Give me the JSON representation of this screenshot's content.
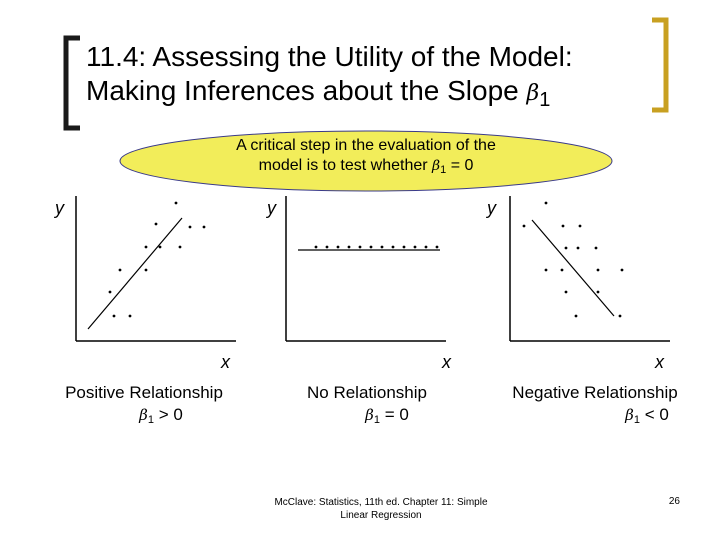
{
  "title": {
    "line1": "11.4: Assessing the Utility of the Model:",
    "line2_text": "Making Inferences about the Slope ",
    "beta_symbol": "β",
    "beta_sub": "1"
  },
  "callout": {
    "line1": "A critical step in the evaluation of the",
    "line2_text": "model is to test whether ",
    "beta_symbol": "β",
    "beta_sub": "1",
    "line2_tail": " = 0",
    "fill_color": "#f2ed5a",
    "border_color": "#3a3a8a"
  },
  "colors": {
    "bracket_left": "#1a1a1a",
    "bracket_right": "#c8a021"
  },
  "panels": [
    {
      "y_label": "y",
      "x_label": "x",
      "caption_line1": "Positive Relationship",
      "beta_symbol": "β",
      "beta_sub": "1",
      "caption_tail": " > 0"
    },
    {
      "y_label": "y",
      "x_label": "x",
      "caption_line1": "No Relationship",
      "beta_symbol": "β",
      "beta_sub": "1",
      "caption_tail": " = 0"
    },
    {
      "y_label": "y",
      "x_label": "x",
      "caption_line1": "Negative Relationship",
      "beta_symbol": "β",
      "beta_sub": "1",
      "caption_tail": " < 0"
    }
  ],
  "footer": {
    "line1": "McClave: Statistics, 11th ed. Chapter 11: Simple",
    "line2": "Linear Regression",
    "page_number": "26"
  }
}
